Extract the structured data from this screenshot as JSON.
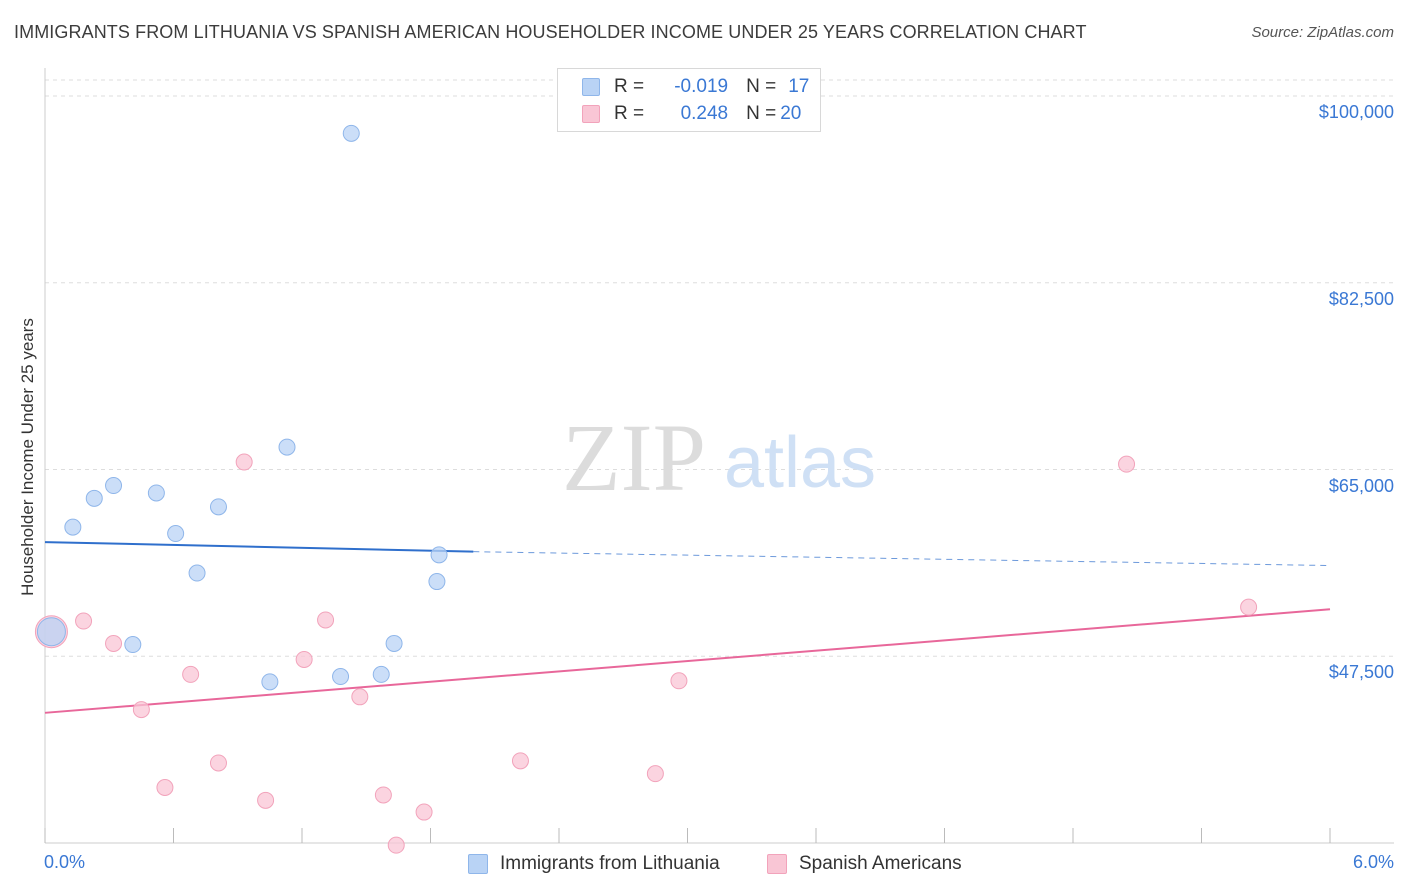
{
  "header": {
    "title": "IMMIGRANTS FROM LITHUANIA VS SPANISH AMERICAN HOUSEHOLDER INCOME UNDER 25 YEARS CORRELATION CHART",
    "source": "Source: ZipAtlas.com"
  },
  "watermark": {
    "zip": "ZIP",
    "atlas": "atlas"
  },
  "legend": {
    "r_label": "R =",
    "n_label": "N =",
    "rows": [
      {
        "r": "-0.019",
        "n": "17"
      },
      {
        "r": "0.248",
        "n": "20"
      }
    ]
  },
  "bottom_legend": {
    "series1": "Immigrants from Lithuania",
    "series2": "Spanish Americans"
  },
  "colors": {
    "series1_fill": "#b9d3f5",
    "series1_stroke": "#8fb6ea",
    "series1_line": "#2f6fcc",
    "series2_fill": "#f9c6d5",
    "series2_stroke": "#f2a3bb",
    "series2_line": "#e8679a",
    "accent_text": "#3a78d4",
    "grid": "#dddddd"
  },
  "chart_data": {
    "type": "scatter",
    "title": "IMMIGRANTS FROM LITHUANIA VS SPANISH AMERICAN HOUSEHOLDER INCOME UNDER 25 YEARS CORRELATION CHART",
    "xlabel": "",
    "ylabel": "Householder Income Under 25 years",
    "xlim": [
      0,
      6
    ],
    "ylim": [
      30000,
      101500
    ],
    "x_tick_labels": [
      "0.0%",
      "6.0%"
    ],
    "y_ticks": [
      47500,
      65000,
      82500,
      100000
    ],
    "y_tick_labels": [
      "$47,500",
      "$65,000",
      "$82,500",
      "$100,000"
    ],
    "grid": true,
    "legend_position": "top-center",
    "series": [
      {
        "name": "Immigrants from Lithuania",
        "r": -0.019,
        "n": 17,
        "points": [
          [
            0.03,
            49800
          ],
          [
            0.13,
            59600
          ],
          [
            0.23,
            62300
          ],
          [
            0.32,
            63500
          ],
          [
            0.52,
            62800
          ],
          [
            0.61,
            59000
          ],
          [
            0.71,
            55300
          ],
          [
            0.81,
            61500
          ],
          [
            1.13,
            67100
          ],
          [
            1.43,
            96500
          ],
          [
            0.41,
            48600
          ],
          [
            1.05,
            45100
          ],
          [
            1.38,
            45600
          ],
          [
            1.57,
            45800
          ],
          [
            1.63,
            48700
          ],
          [
            1.83,
            54500
          ],
          [
            1.84,
            57000
          ]
        ],
        "trend": {
          "x": [
            0,
            2.0
          ],
          "y": [
            58200,
            57300
          ],
          "dashed_extension": {
            "x": [
              2.0,
              6.0
            ],
            "y": [
              57300,
              56000
            ]
          }
        }
      },
      {
        "name": "Spanish Americans",
        "r": 0.248,
        "n": 20,
        "points": [
          [
            0.03,
            49800
          ],
          [
            0.18,
            50800
          ],
          [
            0.32,
            48700
          ],
          [
            0.45,
            42500
          ],
          [
            0.56,
            35200
          ],
          [
            0.68,
            45800
          ],
          [
            0.81,
            37500
          ],
          [
            0.93,
            65700
          ],
          [
            1.03,
            34000
          ],
          [
            1.21,
            47200
          ],
          [
            1.31,
            50900
          ],
          [
            1.47,
            43700
          ],
          [
            1.58,
            34500
          ],
          [
            1.64,
            29800
          ],
          [
            1.77,
            32900
          ],
          [
            2.22,
            37700
          ],
          [
            2.85,
            36500
          ],
          [
            2.96,
            45200
          ],
          [
            5.05,
            65500
          ],
          [
            5.62,
            52100
          ]
        ],
        "trend": {
          "x": [
            0,
            6.0
          ],
          "y": [
            42200,
            51900
          ]
        }
      }
    ]
  }
}
